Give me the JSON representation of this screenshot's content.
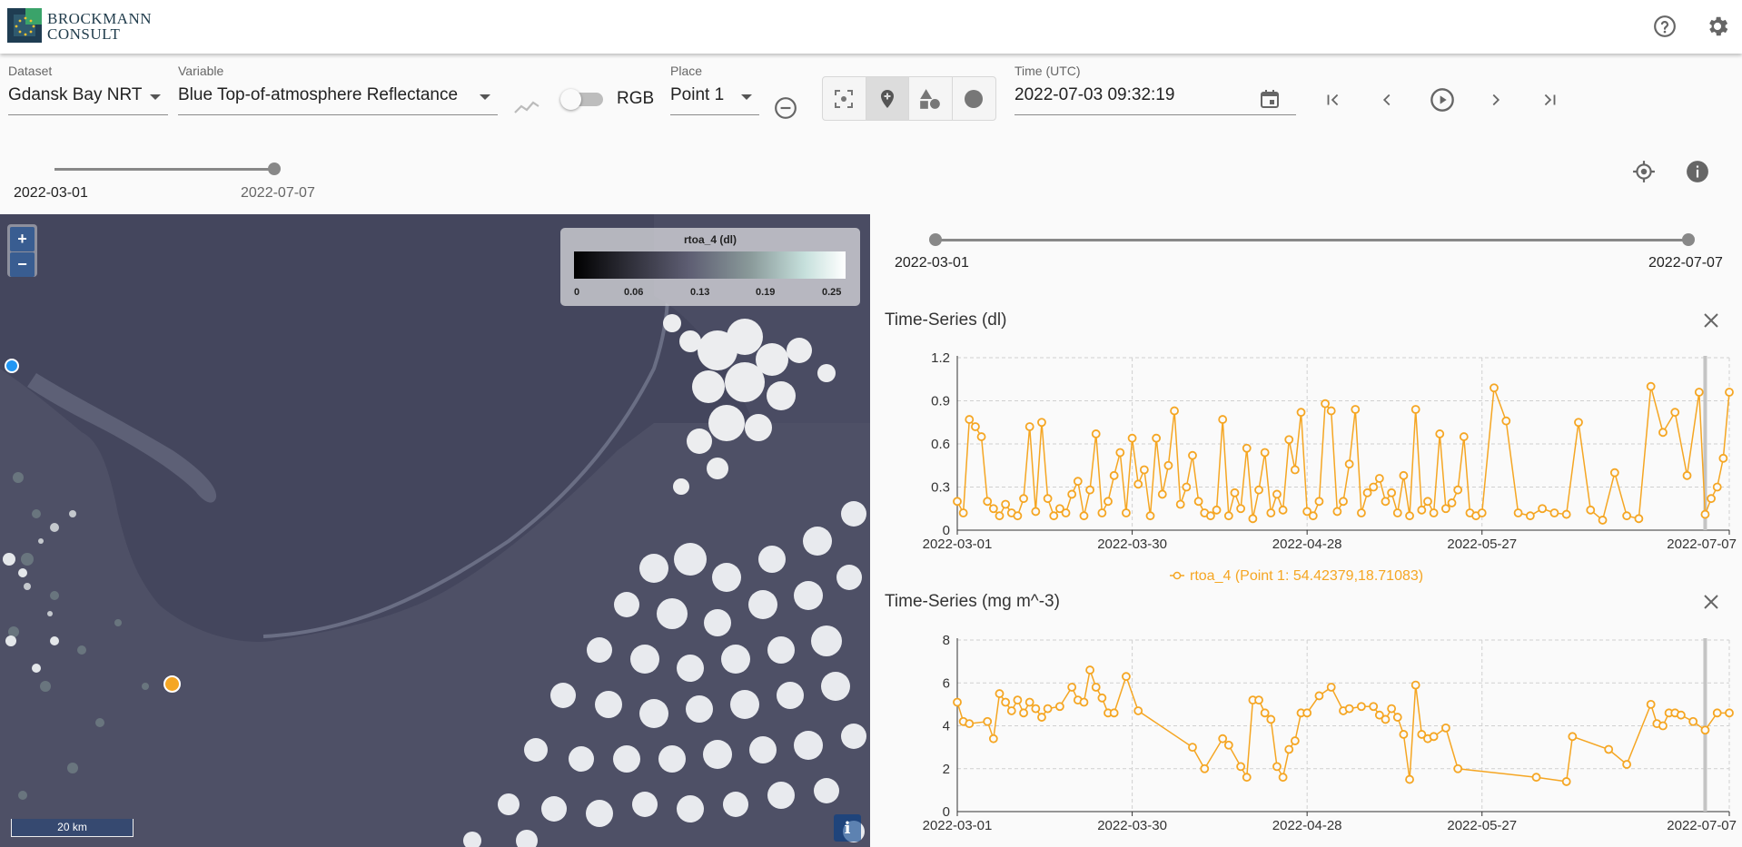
{
  "app": {
    "logo_line1": "BROCKMANN",
    "logo_line2": "CONSULT"
  },
  "toolbar": {
    "dataset_label": "Dataset",
    "dataset_value": "Gdansk Bay NRT",
    "variable_label": "Variable",
    "variable_value": "Blue Top-of-atmosphere Reflectance",
    "rgb_label": "RGB",
    "rgb_enabled": false,
    "place_label": "Place",
    "place_value": "Point 1",
    "time_label": "Time (UTC)",
    "time_value": "2022-07-03 09:32:19"
  },
  "time_slider": {
    "start_label": "2022-03-01",
    "end_label": "2022-07-07"
  },
  "map": {
    "legend_title": "rtoa_4 (dl)",
    "legend_ticks": [
      "0",
      "0.06",
      "0.13",
      "0.19",
      "0.25"
    ],
    "zoom_in": "+",
    "zoom_out": "−",
    "scale_label": "20 km",
    "attribution_button": "i",
    "colors": {
      "point_blue": "#2196f3",
      "point_orange": "#f5a623"
    }
  },
  "panel": {
    "range_start": "2022-03-01",
    "range_end": "2022-07-07",
    "series_color": "#f5a623"
  },
  "chart_data": [
    {
      "type": "line",
      "title": "Time-Series (dl)",
      "x_ticks": [
        "2022-03-01",
        "2022-03-30",
        "2022-04-28",
        "2022-05-27",
        "2022-07-07"
      ],
      "y_ticks": [
        "0",
        "0.3",
        "0.6",
        "0.9",
        "1.2"
      ],
      "ylim": [
        0,
        1.2
      ],
      "legend": "rtoa_4 (Point 1: 54.42379,18.71083)",
      "series": [
        {
          "name": "rtoa_4 (Point 1: 54.42379,18.71083)",
          "x": [
            "2022-03-01",
            "2022-03-02",
            "2022-03-03",
            "2022-03-04",
            "2022-03-05",
            "2022-03-06",
            "2022-03-07",
            "2022-03-08",
            "2022-03-09",
            "2022-03-10",
            "2022-03-11",
            "2022-03-12",
            "2022-03-13",
            "2022-03-14",
            "2022-03-15",
            "2022-03-16",
            "2022-03-17",
            "2022-03-18",
            "2022-03-19",
            "2022-03-20",
            "2022-03-21",
            "2022-03-22",
            "2022-03-23",
            "2022-03-24",
            "2022-03-25",
            "2022-03-26",
            "2022-03-27",
            "2022-03-28",
            "2022-03-29",
            "2022-03-30",
            "2022-03-31",
            "2022-04-01",
            "2022-04-02",
            "2022-04-03",
            "2022-04-04",
            "2022-04-05",
            "2022-04-06",
            "2022-04-07",
            "2022-04-08",
            "2022-04-09",
            "2022-04-10",
            "2022-04-11",
            "2022-04-12",
            "2022-04-13",
            "2022-04-14",
            "2022-04-15",
            "2022-04-16",
            "2022-04-17",
            "2022-04-18",
            "2022-04-19",
            "2022-04-20",
            "2022-04-21",
            "2022-04-22",
            "2022-04-23",
            "2022-04-24",
            "2022-04-25",
            "2022-04-26",
            "2022-04-27",
            "2022-04-28",
            "2022-04-29",
            "2022-04-30",
            "2022-05-01",
            "2022-05-02",
            "2022-05-03",
            "2022-05-04",
            "2022-05-05",
            "2022-05-06",
            "2022-05-07",
            "2022-05-08",
            "2022-05-09",
            "2022-05-10",
            "2022-05-11",
            "2022-05-12",
            "2022-05-13",
            "2022-05-14",
            "2022-05-15",
            "2022-05-16",
            "2022-05-17",
            "2022-05-18",
            "2022-05-19",
            "2022-05-20",
            "2022-05-21",
            "2022-05-22",
            "2022-05-23",
            "2022-05-24",
            "2022-05-25",
            "2022-05-26",
            "2022-05-27",
            "2022-05-29",
            "2022-05-31",
            "2022-06-02",
            "2022-06-04",
            "2022-06-06",
            "2022-06-08",
            "2022-06-10",
            "2022-06-12",
            "2022-06-14",
            "2022-06-16",
            "2022-06-18",
            "2022-06-20",
            "2022-06-22",
            "2022-06-24",
            "2022-06-26",
            "2022-06-28",
            "2022-06-30",
            "2022-07-02",
            "2022-07-03",
            "2022-07-04",
            "2022-07-05",
            "2022-07-06",
            "2022-07-07"
          ],
          "values": [
            0.2,
            0.12,
            0.77,
            0.72,
            0.65,
            0.2,
            0.15,
            0.1,
            0.18,
            0.12,
            0.1,
            0.22,
            0.72,
            0.13,
            0.75,
            0.22,
            0.1,
            0.15,
            0.12,
            0.25,
            0.34,
            0.1,
            0.28,
            0.67,
            0.12,
            0.2,
            0.38,
            0.54,
            0.12,
            0.64,
            0.32,
            0.42,
            0.1,
            0.64,
            0.25,
            0.45,
            0.83,
            0.18,
            0.3,
            0.52,
            0.2,
            0.12,
            0.1,
            0.14,
            0.77,
            0.1,
            0.26,
            0.15,
            0.57,
            0.08,
            0.28,
            0.54,
            0.12,
            0.25,
            0.14,
            0.63,
            0.42,
            0.82,
            0.13,
            0.1,
            0.2,
            0.88,
            0.83,
            0.13,
            0.2,
            0.46,
            0.84,
            0.12,
            0.26,
            0.3,
            0.36,
            0.2,
            0.26,
            0.12,
            0.38,
            0.1,
            0.84,
            0.14,
            0.2,
            0.12,
            0.67,
            0.15,
            0.19,
            0.28,
            0.65,
            0.12,
            0.1,
            0.12,
            0.99,
            0.76,
            0.12,
            0.1,
            0.15,
            0.12,
            0.11,
            0.75,
            0.14,
            0.07,
            0.4,
            0.1,
            0.08,
            1.0,
            0.68,
            0.82,
            0.38,
            0.96,
            0.11,
            0.22,
            0.3,
            0.5,
            0.96
          ]
        }
      ]
    },
    {
      "type": "line",
      "title": "Time-Series (mg m^-3)",
      "x_ticks": [
        "2022-03-01",
        "2022-03-30",
        "2022-04-28",
        "2022-05-27",
        "2022-07-07"
      ],
      "y_ticks": [
        "0",
        "2",
        "4",
        "6",
        "8"
      ],
      "ylim": [
        0,
        8
      ],
      "series": [
        {
          "name": "rtoa_4 (Point 1: 54.42379,18.71083)",
          "x": [
            "2022-03-01",
            "2022-03-02",
            "2022-03-03",
            "2022-03-06",
            "2022-03-07",
            "2022-03-08",
            "2022-03-09",
            "2022-03-10",
            "2022-03-11",
            "2022-03-12",
            "2022-03-13",
            "2022-03-14",
            "2022-03-15",
            "2022-03-16",
            "2022-03-18",
            "2022-03-20",
            "2022-03-21",
            "2022-03-22",
            "2022-03-23",
            "2022-03-24",
            "2022-03-25",
            "2022-03-26",
            "2022-03-27",
            "2022-03-29",
            "2022-03-31",
            "2022-04-09",
            "2022-04-11",
            "2022-04-14",
            "2022-04-15",
            "2022-04-17",
            "2022-04-18",
            "2022-04-19",
            "2022-04-20",
            "2022-04-21",
            "2022-04-22",
            "2022-04-23",
            "2022-04-24",
            "2022-04-25",
            "2022-04-26",
            "2022-04-27",
            "2022-04-28",
            "2022-04-30",
            "2022-05-02",
            "2022-05-04",
            "2022-05-05",
            "2022-05-07",
            "2022-05-09",
            "2022-05-10",
            "2022-05-11",
            "2022-05-12",
            "2022-05-13",
            "2022-05-14",
            "2022-05-15",
            "2022-05-16",
            "2022-05-17",
            "2022-05-18",
            "2022-05-19",
            "2022-05-21",
            "2022-05-23",
            "2022-06-05",
            "2022-06-10",
            "2022-06-11",
            "2022-06-17",
            "2022-06-20",
            "2022-06-24",
            "2022-06-25",
            "2022-06-26",
            "2022-06-27",
            "2022-06-28",
            "2022-06-29",
            "2022-07-01",
            "2022-07-03",
            "2022-07-05",
            "2022-07-07"
          ],
          "values": [
            5.1,
            4.2,
            4.1,
            4.2,
            3.4,
            5.5,
            5.1,
            4.7,
            5.2,
            4.6,
            5.1,
            4.8,
            4.4,
            4.8,
            4.9,
            5.8,
            5.2,
            5.1,
            6.6,
            5.8,
            5.3,
            4.6,
            4.6,
            6.3,
            4.7,
            3.0,
            2.0,
            3.4,
            3.1,
            2.1,
            1.6,
            5.2,
            5.2,
            4.6,
            4.3,
            2.1,
            1.6,
            2.9,
            3.3,
            4.6,
            4.6,
            5.4,
            5.8,
            4.7,
            4.8,
            4.9,
            4.9,
            4.5,
            4.3,
            4.8,
            4.4,
            3.6,
            1.5,
            5.9,
            3.6,
            3.4,
            3.5,
            3.9,
            2.0,
            1.6,
            1.4,
            3.5,
            2.9,
            2.2,
            5.0,
            4.1,
            4.0,
            4.6,
            4.6,
            4.5,
            4.2,
            3.8,
            4.6,
            4.6
          ]
        }
      ]
    }
  ]
}
